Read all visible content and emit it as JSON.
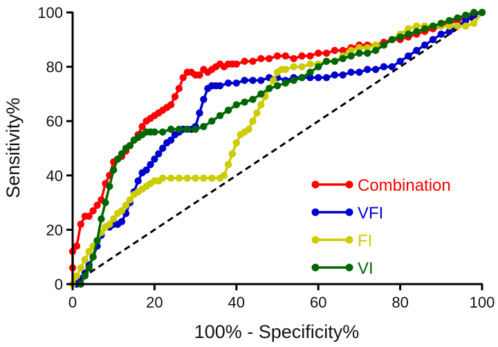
{
  "chart_data": {
    "type": "line",
    "title": "",
    "xlabel": "100% - Specificity%",
    "ylabel": "Sensitivity%",
    "xlim": [
      0,
      100
    ],
    "ylim": [
      0,
      100
    ],
    "xticks": [
      0,
      20,
      40,
      60,
      80,
      100
    ],
    "yticks": [
      0,
      20,
      40,
      60,
      80,
      100
    ],
    "legend_position": "bottom-right",
    "reference_line": {
      "name": "chance",
      "style": "dashed",
      "color": "#000000",
      "x": [
        0,
        100
      ],
      "y": [
        0,
        100
      ]
    },
    "series": [
      {
        "name": "Combination",
        "color": "#ff0000",
        "x": [
          0,
          0,
          0,
          1,
          2,
          3,
          4,
          5,
          6,
          7,
          8,
          9,
          10,
          11,
          12,
          13,
          14,
          15,
          16,
          17,
          18,
          19,
          20,
          21,
          22,
          23,
          24,
          25,
          26,
          27,
          28,
          29,
          30,
          31,
          32,
          33,
          34,
          35,
          36,
          37,
          38,
          39,
          40,
          42,
          44,
          46,
          48,
          50,
          52,
          54,
          56,
          58,
          60,
          62,
          64,
          66,
          68,
          70,
          72,
          74,
          76,
          78,
          80,
          82,
          84,
          86,
          88,
          90,
          92,
          94,
          96,
          98,
          100
        ],
        "y": [
          0,
          6,
          12,
          14,
          22,
          25,
          25,
          27,
          29,
          31,
          37,
          40,
          45,
          46,
          47,
          49,
          51,
          53,
          55,
          58,
          60,
          61,
          62,
          63,
          64,
          65,
          66,
          69,
          72,
          76,
          78,
          78,
          77,
          77,
          79,
          78,
          79,
          80,
          81,
          80,
          81,
          81,
          81,
          82,
          82,
          83,
          83,
          84,
          84,
          83,
          84,
          84,
          85,
          85,
          86,
          86,
          87,
          88,
          88,
          88,
          89,
          90,
          90,
          91,
          92,
          93,
          94,
          95,
          96,
          97,
          98,
          99,
          100
        ]
      },
      {
        "name": "VFI",
        "color": "#0000cc",
        "x": [
          1,
          2,
          3,
          4,
          5,
          6,
          7,
          8,
          9,
          10,
          11,
          12,
          13,
          14,
          15,
          16,
          17,
          18,
          19,
          20,
          21,
          22,
          23,
          24,
          25,
          26,
          27,
          28,
          29,
          30,
          31,
          32,
          33,
          34,
          35,
          36,
          38,
          40,
          42,
          44,
          46,
          48,
          50,
          52,
          54,
          56,
          58,
          60,
          62,
          64,
          66,
          68,
          70,
          72,
          74,
          76,
          78,
          80,
          82,
          84,
          86,
          88,
          90,
          92,
          94,
          96,
          98,
          100
        ],
        "y": [
          0,
          2,
          4,
          7,
          10,
          14,
          18,
          21,
          21,
          22,
          22,
          23,
          26,
          30,
          34,
          38,
          41,
          42,
          44,
          46,
          48,
          50,
          52,
          53,
          55,
          56,
          57,
          57,
          57,
          58,
          63,
          68,
          72,
          73,
          73,
          73,
          74,
          74,
          75,
          75,
          75,
          76,
          76,
          75,
          76,
          76,
          76,
          76,
          76,
          77,
          77,
          78,
          78,
          79,
          79,
          80,
          80,
          82,
          84,
          86,
          88,
          90,
          92,
          93,
          95,
          97,
          99,
          100
        ]
      },
      {
        "name": "FI",
        "color": "#cccc00",
        "x": [
          0,
          1,
          2,
          3,
          4,
          5,
          6,
          7,
          8,
          9,
          10,
          11,
          12,
          13,
          14,
          15,
          16,
          17,
          18,
          19,
          20,
          21,
          22,
          24,
          26,
          28,
          30,
          32,
          34,
          36,
          37,
          38,
          39,
          40,
          41,
          42,
          43,
          44,
          45,
          46,
          47,
          48,
          49,
          50,
          51,
          52,
          54,
          56,
          58,
          60,
          62,
          64,
          66,
          68,
          70,
          72,
          74,
          76,
          78,
          80,
          82,
          84,
          86,
          88,
          90,
          92,
          94,
          96,
          98,
          100
        ],
        "y": [
          0,
          3,
          6,
          9,
          12,
          14,
          16,
          19,
          21,
          22,
          24,
          26,
          27,
          29,
          31,
          33,
          34,
          35,
          36,
          37,
          38,
          38,
          39,
          39,
          39,
          39,
          39,
          39,
          39,
          39,
          40,
          44,
          48,
          52,
          55,
          56,
          57,
          60,
          63,
          66,
          69,
          72,
          75,
          78,
          79,
          79,
          80,
          80,
          81,
          81,
          82,
          82,
          84,
          86,
          87,
          87,
          88,
          88,
          90,
          92,
          94,
          95,
          95,
          95,
          95,
          95,
          95,
          95,
          96,
          100
        ]
      },
      {
        "name": "VI",
        "color": "#006600",
        "x": [
          2,
          3,
          4,
          5,
          6,
          7,
          8,
          9,
          10,
          11,
          12,
          13,
          14,
          15,
          16,
          17,
          18,
          19,
          20,
          22,
          24,
          26,
          28,
          30,
          32,
          34,
          36,
          38,
          40,
          42,
          44,
          46,
          48,
          50,
          52,
          54,
          56,
          58,
          60,
          62,
          64,
          66,
          68,
          70,
          72,
          74,
          76,
          78,
          80,
          82,
          84,
          86,
          88,
          90,
          92,
          94,
          96,
          98,
          100
        ],
        "y": [
          0,
          3,
          6,
          10,
          16,
          24,
          30,
          36,
          42,
          46,
          48,
          50,
          51,
          53,
          54,
          55,
          56,
          56,
          56,
          56,
          57,
          57,
          57,
          57,
          58,
          60,
          62,
          64,
          66,
          67,
          68,
          70,
          72,
          73,
          74,
          75,
          76,
          78,
          80,
          82,
          82,
          83,
          84,
          85,
          85,
          86,
          88,
          90,
          91,
          92,
          93,
          94,
          95,
          96,
          97,
          98,
          99,
          100,
          100
        ]
      }
    ]
  }
}
